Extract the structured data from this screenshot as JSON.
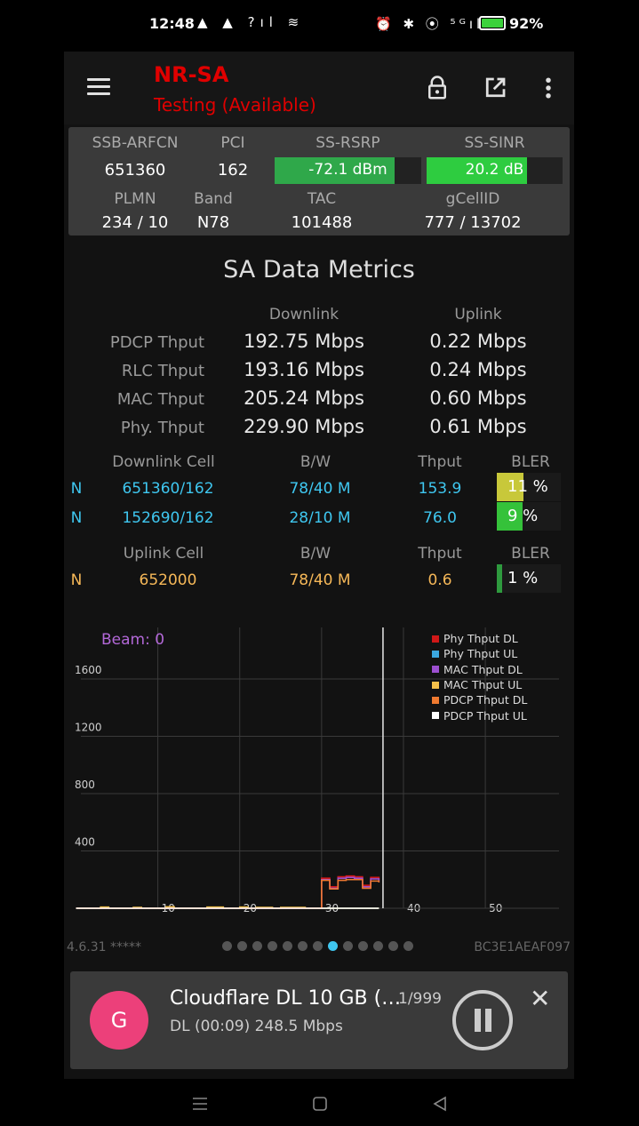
{
  "status_bar": {
    "time": "12:48",
    "left_icons": "▲ ▲ ?ıl ≋",
    "right_icons": "⏰ ✱ ⦿ ⁵ᴳıl",
    "battery_pct": "92%"
  },
  "toolbar": {
    "title": "NR-SA",
    "subtitle": "Testing (Available)"
  },
  "cell_info": {
    "labels": {
      "ssb_arfcn": "SSB-ARFCN",
      "pci": "PCI",
      "ss_rsrp": "SS-RSRP",
      "ss_sinr": "SS-SINR",
      "plmn": "PLMN",
      "band": "Band",
      "tac": "TAC",
      "gcellid": "gCellID"
    },
    "values": {
      "ssb_arfcn": "651360",
      "pci": "162",
      "ss_rsrp": "-72.1 dBm",
      "ss_sinr": "20.2 dB",
      "plmn": "234 / 10",
      "band": "N78",
      "tac": "101488",
      "gcellid": "777 / 13702"
    },
    "rsrp_fill": 0.82,
    "sinr_fill": 0.74,
    "rsrp_color": "#2fa84a",
    "sinr_color": "#2ecc40"
  },
  "metrics": {
    "title": "SA Data Metrics",
    "downlink_header": "Downlink",
    "uplink_header": "Uplink",
    "rows": [
      {
        "label": "PDCP Thput",
        "dl": "192.75 Mbps",
        "ul": "0.22 Mbps"
      },
      {
        "label": "RLC Thput",
        "dl": "193.16 Mbps",
        "ul": "0.24 Mbps"
      },
      {
        "label": "MAC Thput",
        "dl": "205.24 Mbps",
        "ul": "0.60 Mbps"
      },
      {
        "label": "Phy. Thput",
        "dl": "229.90 Mbps",
        "ul": "0.61 Mbps"
      }
    ]
  },
  "cells": {
    "dl_headers": {
      "cell": "Downlink Cell",
      "bw": "B/W",
      "thput": "Thput",
      "bler": "BLER"
    },
    "dl_rows": [
      {
        "tech": "N",
        "cell": "651360/162",
        "bw": "78/40 M",
        "thput": "153.9",
        "bler": "11 %",
        "bler_fill": 0.42,
        "bler_color": "#c8c83a"
      },
      {
        "tech": "N",
        "cell": "152690/162",
        "bw": "28/10 M",
        "thput": "76.0",
        "bler": "9 %",
        "bler_fill": 0.4,
        "bler_color": "#35c23a"
      }
    ],
    "ul_headers": {
      "cell": "Uplink Cell",
      "bw": "B/W",
      "thput": "Thput",
      "bler": "BLER"
    },
    "ul_rows": [
      {
        "tech": "N",
        "cell": "652000",
        "bw": "78/40 M",
        "thput": "0.6",
        "bler": "1 %",
        "bler_fill": 0.08,
        "bler_color": "#2e9a3e"
      }
    ]
  },
  "chart_data": {
    "type": "line",
    "title": "",
    "beam_label": "Beam: 0",
    "xlabel": "",
    "ylabel": "",
    "x_ticks": [
      10,
      20,
      30,
      40,
      50
    ],
    "y_ticks": [
      400,
      800,
      1200,
      1600
    ],
    "xlim": [
      0,
      59
    ],
    "ylim": [
      0,
      1960
    ],
    "cursor_x": 37.5,
    "series": [
      {
        "name": "Phy Thput DL",
        "color": "#d01818",
        "x": [
          0,
          29,
          30,
          31,
          32,
          33,
          34,
          35,
          36,
          37
        ],
        "y": [
          0,
          0,
          210,
          150,
          220,
          225,
          220,
          160,
          215,
          200
        ]
      },
      {
        "name": "Phy Thput UL",
        "color": "#3ba7e0",
        "x": [
          0,
          37
        ],
        "y": [
          0,
          0
        ]
      },
      {
        "name": "MAC Thput DL",
        "color": "#9c4fd0",
        "x": [
          0,
          29,
          30,
          31,
          32,
          33,
          34,
          35,
          36,
          37
        ],
        "y": [
          0,
          0,
          200,
          140,
          210,
          215,
          210,
          150,
          205,
          190
        ]
      },
      {
        "name": "MAC Thput UL",
        "color": "#f5c04a",
        "x": [
          0,
          2,
          3,
          4,
          6,
          7,
          8,
          10,
          11,
          12,
          15,
          16,
          17,
          18,
          19,
          20,
          21,
          22,
          24,
          25,
          26,
          27,
          28,
          29,
          37
        ],
        "y": [
          0,
          0,
          8,
          0,
          0,
          6,
          0,
          0,
          10,
          0,
          0,
          8,
          8,
          0,
          0,
          8,
          0,
          6,
          0,
          6,
          6,
          6,
          0,
          0,
          0
        ]
      },
      {
        "name": "PDCP Thput DL",
        "color": "#f07a30",
        "x": [
          0,
          29,
          30,
          31,
          32,
          33,
          34,
          35,
          36,
          37
        ],
        "y": [
          0,
          0,
          195,
          135,
          195,
          200,
          200,
          140,
          190,
          180
        ]
      },
      {
        "name": "PDCP Thput UL",
        "color": "#ffffff",
        "x": [
          0,
          37
        ],
        "y": [
          0,
          0
        ]
      }
    ]
  },
  "footer": {
    "version": "4.6.31 *****",
    "device_id": "BC3E1AEAF097",
    "page_count": 13,
    "active_page": 7
  },
  "notification": {
    "avatar_letter": "G",
    "title": "Cloudflare DL 10 GB (…",
    "count": "1/999",
    "subtitle": "DL (00:09) 248.5 Mbps"
  }
}
